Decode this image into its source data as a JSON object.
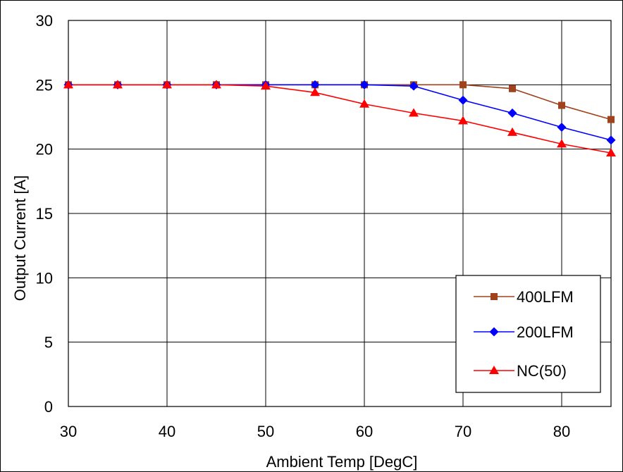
{
  "chart_data": {
    "type": "line",
    "title": "",
    "xlabel": "Ambient Temp [DegC]",
    "ylabel": "Output Current [A]",
    "xlim": [
      30,
      85
    ],
    "ylim": [
      0,
      30
    ],
    "xticks": [
      30,
      40,
      50,
      60,
      70,
      80
    ],
    "yticks": [
      0,
      5,
      10,
      15,
      20,
      25,
      30
    ],
    "x_tick_labels": [
      "30",
      "40",
      "50",
      "60",
      "70",
      "80"
    ],
    "y_tick_labels": [
      "0",
      "5",
      "10",
      "15",
      "20",
      "25",
      "30"
    ],
    "grid": true,
    "legend_position": "bottom-right",
    "x": [
      30,
      35,
      40,
      45,
      50,
      55,
      60,
      65,
      70,
      75,
      80,
      85
    ],
    "series": [
      {
        "name": "400LFM",
        "color": "#a0421b",
        "marker": "square",
        "values": [
          25,
          25,
          25,
          25,
          25,
          25,
          25,
          25,
          25,
          24.7,
          23.4,
          22.3
        ]
      },
      {
        "name": "200LFM",
        "color": "#0000ff",
        "marker": "diamond",
        "values": [
          25,
          25,
          25,
          25,
          25,
          25,
          25,
          24.9,
          23.8,
          22.8,
          21.7,
          20.7
        ]
      },
      {
        "name": "NC(50)",
        "color": "#ff0000",
        "marker": "triangle",
        "values": [
          25,
          25,
          25,
          25,
          24.9,
          24.4,
          23.5,
          22.8,
          22.2,
          21.3,
          20.4,
          19.7
        ]
      }
    ]
  }
}
